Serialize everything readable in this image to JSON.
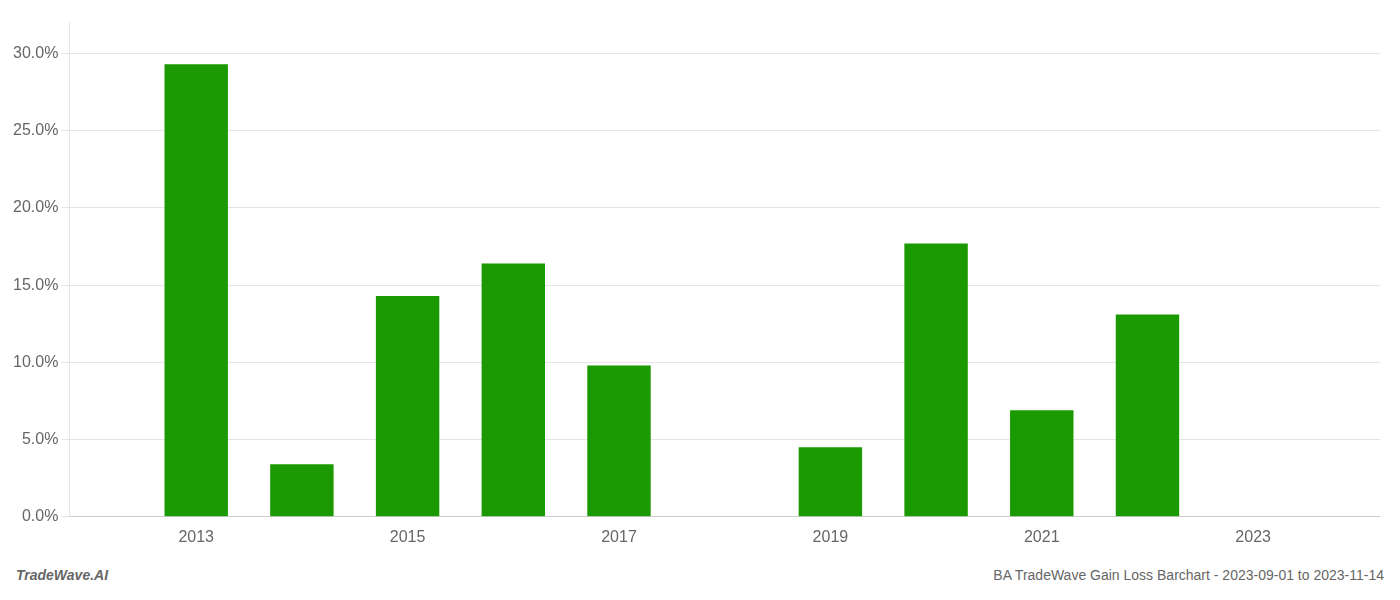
{
  "chart_data": {
    "type": "bar",
    "x": [
      2013,
      2014,
      2015,
      2016,
      2017,
      2019,
      2020,
      2021,
      2022
    ],
    "values": [
      0.293,
      0.034,
      0.143,
      0.164,
      0.098,
      0.045,
      0.177,
      0.069,
      0.131
    ],
    "color": "#1a9a00",
    "xlim": [
      2011.8,
      2024.2
    ],
    "xticks": [
      2013,
      2015,
      2017,
      2019,
      2021,
      2023
    ],
    "ylim": [
      0,
      0.32
    ],
    "yticks": [
      {
        "value": 0.0,
        "label": "0.0%"
      },
      {
        "value": 0.05,
        "label": "5.0%"
      },
      {
        "value": 0.1,
        "label": "10.0%"
      },
      {
        "value": 0.15,
        "label": "15.0%"
      },
      {
        "value": 0.2,
        "label": "20.0%"
      },
      {
        "value": 0.25,
        "label": "25.0%"
      },
      {
        "value": 0.3,
        "label": "30.0%"
      }
    ],
    "grid": true,
    "annotations": [
      "TradeWave.AI",
      "BA TradeWave Gain Loss Barchart - 2023-09-01 to 2023-11-14"
    ]
  }
}
